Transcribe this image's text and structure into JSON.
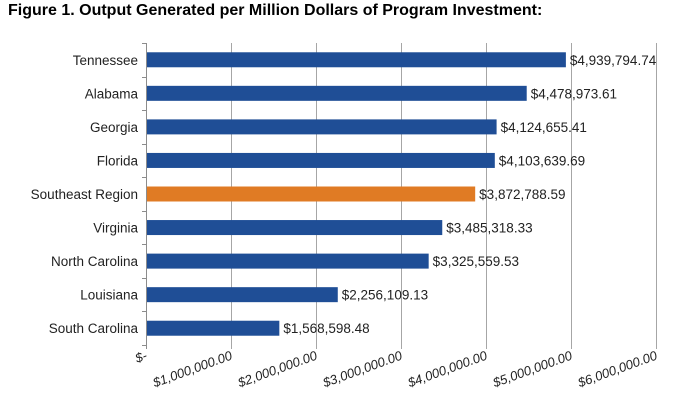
{
  "chart_data": {
    "type": "bar",
    "orientation": "horizontal",
    "title": "Figure 1.  Output Generated per Million Dollars of Program Investment:",
    "categories": [
      "Tennessee",
      "Alabama",
      "Georgia",
      "Florida",
      "Southeast Region",
      "Virginia",
      "North Carolina",
      "Louisiana",
      "South Carolina"
    ],
    "values": [
      4939794.74,
      4478973.61,
      4124655.41,
      4103639.69,
      3872788.59,
      3485318.33,
      3325559.53,
      2256109.13,
      1568598.48
    ],
    "data_labels": [
      "$4,939,794.74",
      "$4,478,973.61",
      "$4,124,655.41",
      "$4,103,639.69",
      "$3,872,788.59",
      "$3,485,318.33",
      "$3,325,559.53",
      "$2,256,109.13",
      "$1,568,598.48"
    ],
    "bar_colors": [
      "#1f4e96",
      "#1f4e96",
      "#1f4e96",
      "#1f4e96",
      "#e07b24",
      "#1f4e96",
      "#1f4e96",
      "#1f4e96",
      "#1f4e96"
    ],
    "xlim": [
      0,
      6000000
    ],
    "x_ticks": [
      0,
      1000000,
      2000000,
      3000000,
      4000000,
      5000000,
      6000000
    ],
    "x_tick_labels": [
      "$-",
      "$1,000,000.00",
      "$2,000,000.00",
      "$3,000,000.00",
      "$4,000,000.00",
      "$5,000,000.00",
      "$6,000,000.00"
    ],
    "grid": true,
    "xlabel": "",
    "ylabel": ""
  }
}
